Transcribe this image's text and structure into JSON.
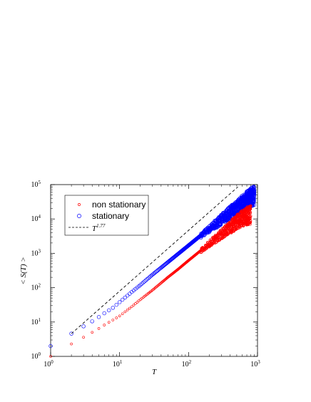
{
  "chart_data": {
    "type": "scatter",
    "x_scale": "log",
    "y_scale": "log",
    "xlim": [
      1,
      1000
    ],
    "ylim": [
      1,
      100000
    ],
    "xlabel": "T",
    "ylabel": "< S(T) >",
    "x_ticks": [
      {
        "base": "10",
        "exp": "0",
        "value": 1
      },
      {
        "base": "10",
        "exp": "1",
        "value": 10
      },
      {
        "base": "10",
        "exp": "2",
        "value": 100
      },
      {
        "base": "10",
        "exp": "3",
        "value": 1000
      }
    ],
    "y_ticks": [
      {
        "base": "10",
        "exp": "0",
        "value": 1
      },
      {
        "base": "10",
        "exp": "1",
        "value": 10
      },
      {
        "base": "10",
        "exp": "2",
        "value": 100
      },
      {
        "base": "10",
        "exp": "3",
        "value": 1000
      },
      {
        "base": "10",
        "exp": "4",
        "value": 10000
      },
      {
        "base": "10",
        "exp": "5",
        "value": 100000
      }
    ],
    "grid": false,
    "legend_position": "top-left",
    "series": [
      {
        "name": "non stationary",
        "color": "#ff0000",
        "marker": "small-circle",
        "x": [
          1,
          2,
          3,
          4,
          5,
          6,
          8,
          10,
          15,
          20,
          30,
          50,
          70,
          100,
          150,
          200,
          300,
          400,
          500,
          600,
          700,
          800
        ],
        "y": [
          1.0,
          2.3,
          3.6,
          5.0,
          6.5,
          8.2,
          11.5,
          15,
          28,
          45,
          85,
          200,
          340,
          620,
          1200,
          1950,
          3800,
          6000,
          8500,
          11000,
          13000,
          14000
        ]
      },
      {
        "name": "stationary",
        "color": "#0000ff",
        "marker": "circle",
        "x": [
          1,
          2,
          3,
          4,
          5,
          6,
          8,
          10,
          15,
          20,
          30,
          50,
          70,
          100,
          150,
          200,
          300,
          400,
          500,
          600,
          700,
          800,
          900
        ],
        "y": [
          2.0,
          4.6,
          7.5,
          10.5,
          14,
          18,
          26,
          38,
          75,
          120,
          240,
          550,
          950,
          1700,
          3300,
          5200,
          10000,
          16000,
          22000,
          30000,
          38000,
          45000,
          52000
        ]
      },
      {
        "name": "T^1.77",
        "label_base": "T",
        "label_exp": "1.77",
        "color": "#000000",
        "style": "dashed",
        "exponent": 1.77,
        "x": [
          2,
          520
        ],
        "y": [
          4.6,
          86000
        ]
      }
    ]
  }
}
